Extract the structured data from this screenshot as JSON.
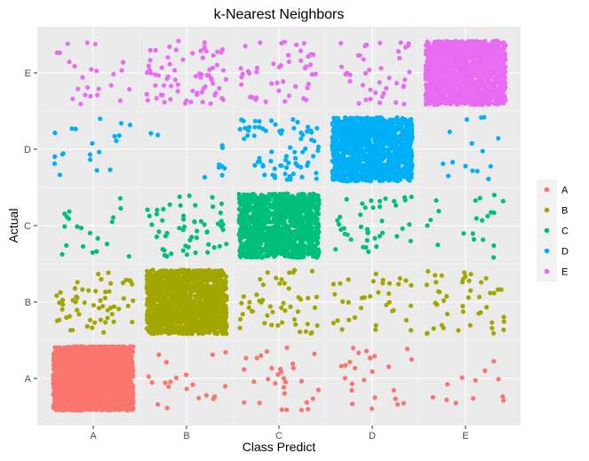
{
  "chart_data": {
    "type": "scatter",
    "subtype": "jittered confusion matrix",
    "title": "k-Nearest Neighbors",
    "xlabel": "Class Predict",
    "ylabel": "Actual",
    "categories_x": [
      "A",
      "B",
      "C",
      "D",
      "E"
    ],
    "categories_y": [
      "A",
      "B",
      "C",
      "D",
      "E"
    ],
    "grid": true,
    "legend": {
      "placement": "right",
      "entries": [
        {
          "label": "A",
          "color": "#F8766D"
        },
        {
          "label": "B",
          "color": "#A3A500"
        },
        {
          "label": "C",
          "color": "#00BF7D"
        },
        {
          "label": "D",
          "color": "#00B0F6"
        },
        {
          "label": "E",
          "color": "#E76BF3"
        }
      ]
    },
    "series": [
      {
        "name": "A",
        "color": "#F8766D",
        "counts": [
          2200,
          20,
          30,
          25,
          12
        ]
      },
      {
        "name": "B",
        "color": "#A3A500",
        "counts": [
          60,
          1400,
          50,
          35,
          45
        ]
      },
      {
        "name": "C",
        "color": "#00BF7D",
        "counts": [
          20,
          55,
          1250,
          40,
          20
        ]
      },
      {
        "name": "D",
        "color": "#00B0F6",
        "counts": [
          20,
          10,
          75,
          1300,
          15
        ]
      },
      {
        "name": "E",
        "color": "#E76BF3",
        "counts": [
          25,
          75,
          45,
          40,
          1450
        ]
      }
    ]
  }
}
